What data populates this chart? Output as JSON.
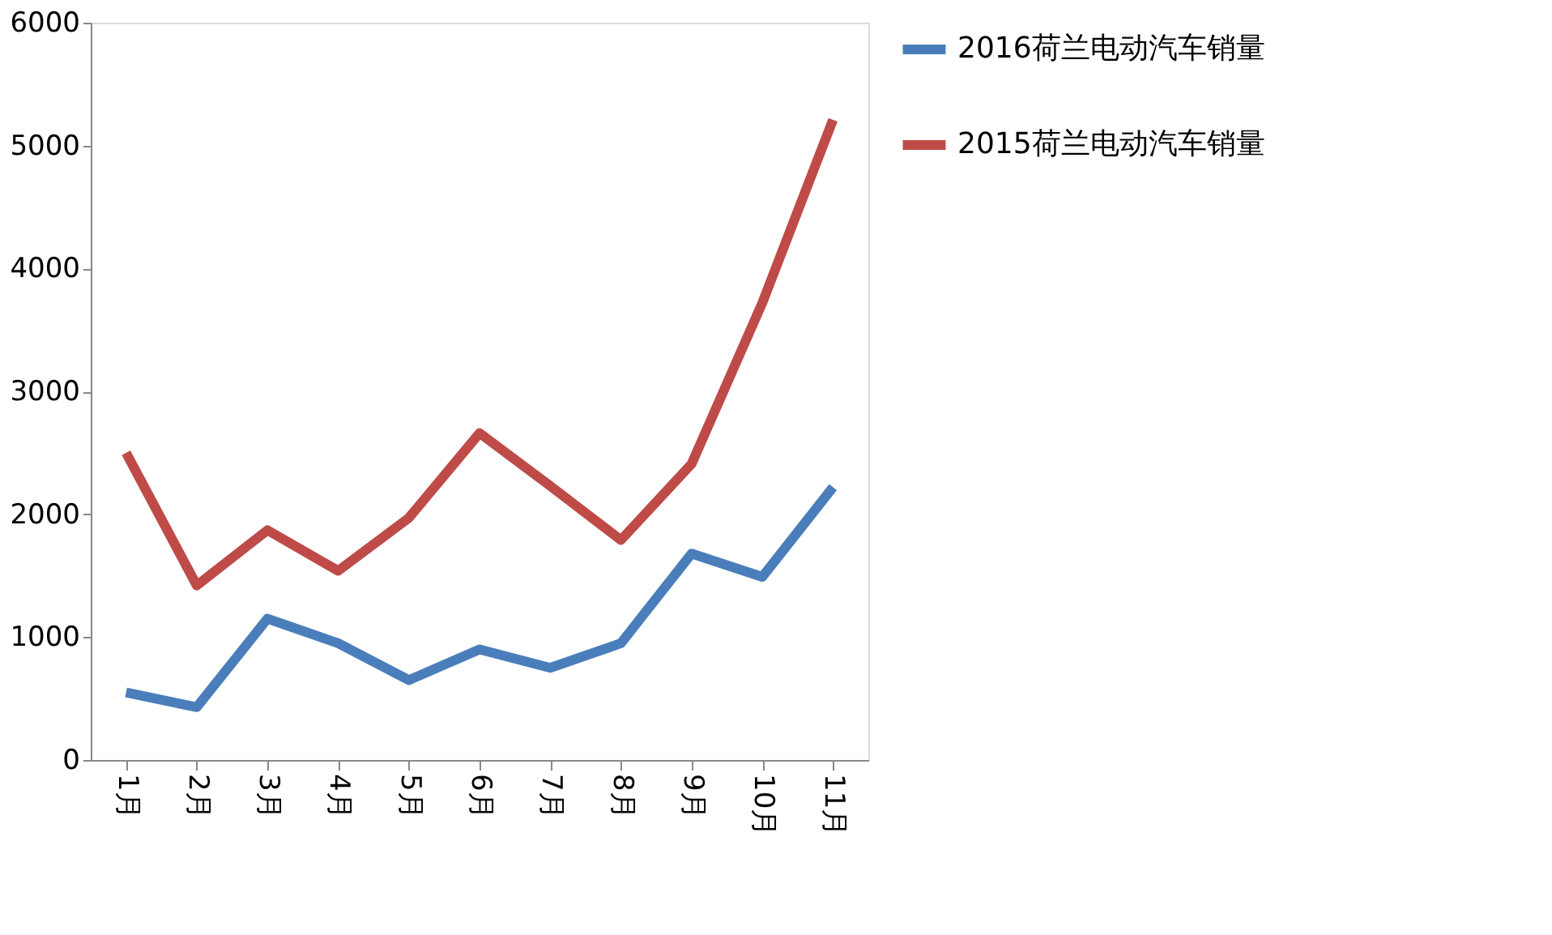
{
  "chart_data": {
    "type": "line",
    "categories": [
      "1月",
      "2月",
      "3月",
      "4月",
      "5月",
      "6月",
      "7月",
      "8月",
      "9月",
      "10月",
      "11月"
    ],
    "series": [
      {
        "name": "2016荷兰电动汽车销量",
        "color": "#4a7ebb",
        "values": [
          550,
          430,
          1150,
          950,
          650,
          900,
          750,
          950,
          1680,
          1490,
          2220
        ]
      },
      {
        "name": "2015荷兰电动汽车销量",
        "color": "#be4b48",
        "values": [
          2500,
          1420,
          1870,
          1540,
          1970,
          2660,
          2230,
          1790,
          2410,
          3720,
          5210
        ]
      }
    ],
    "ylim": [
      0,
      6000
    ],
    "yticks": [
      0,
      1000,
      2000,
      3000,
      4000,
      5000,
      6000
    ],
    "grid": false,
    "legend": "right",
    "marker": "none",
    "line_style": "solid"
  }
}
